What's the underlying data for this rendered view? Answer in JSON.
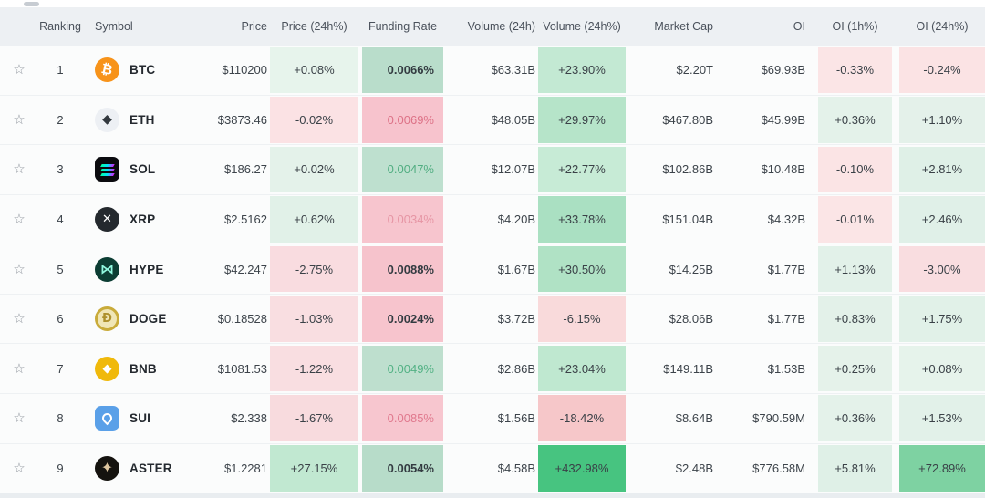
{
  "header": {
    "ranking": "Ranking",
    "symbol": "Symbol",
    "price": "Price",
    "price_24h": "Price (24h%)",
    "funding_rate": "Funding Rate",
    "volume_24h": "Volume (24h)",
    "volume_24h_pct": "Volume (24h%)",
    "market_cap": "Market Cap",
    "oi": "OI",
    "oi_1h": "OI (1h%)",
    "oi_24h": "OI (24h%)"
  },
  "icons": {
    "favorite_star": "☆"
  },
  "colors": {
    "positive_strong": "#47c480",
    "positive_medium": "#7ed2a2",
    "funding_green_bg": "#b9ddcb",
    "funding_red_bg": "#f7c3cd",
    "header_bg": "#edf0f3",
    "row_bg": "#fbfcfc"
  },
  "rows": [
    {
      "rank": "1",
      "symbol": "BTC",
      "icon": {
        "name": "btc-icon",
        "kind": "glyph",
        "shape": "circle",
        "bg": "#f7931a",
        "fg": "#ffffff",
        "glyph": "₿",
        "size": 15,
        "bold": true,
        "rotate": 12
      },
      "price": "$110200",
      "price_24h": {
        "text": "+0.08%",
        "bg": "#e7f4ec"
      },
      "funding": {
        "text": "0.0066%",
        "bg": "#b9ddcb",
        "color": "#333b41",
        "bold": true
      },
      "volume": "$63.31B",
      "volume_24h": {
        "text": "+23.90%",
        "bg": "#c3e9d3"
      },
      "mcap": "$2.20T",
      "oi": "$69.93B",
      "oi_1h": {
        "text": "-0.33%",
        "bg": "#fbe5e6"
      },
      "oi_24h": {
        "text": "-0.24%",
        "bg": "#fbe3e4"
      }
    },
    {
      "rank": "2",
      "symbol": "ETH",
      "icon": {
        "name": "eth-icon",
        "kind": "glyph",
        "shape": "circle",
        "bg": "#edf0f4",
        "fg": "#32383e",
        "glyph": "◆",
        "size": 14,
        "bold": false,
        "rotate": 0
      },
      "price": "$3873.46",
      "price_24h": {
        "text": "-0.02%",
        "bg": "#fbe2e4"
      },
      "funding": {
        "text": "0.0069%",
        "bg": "#f7c3cd",
        "color": "#dd7287",
        "bold": false
      },
      "volume": "$48.05B",
      "volume_24h": {
        "text": "+29.97%",
        "bg": "#b6e4c9"
      },
      "mcap": "$467.80B",
      "oi": "$45.99B",
      "oi_1h": {
        "text": "+0.36%",
        "bg": "#e4f2ea"
      },
      "oi_24h": {
        "text": "+1.10%",
        "bg": "#e4f1ea"
      }
    },
    {
      "rank": "3",
      "symbol": "SOL",
      "icon": {
        "name": "sol-icon",
        "kind": "sol",
        "shape": "rounded",
        "bg": "#0b0b0f"
      },
      "price": "$186.27",
      "price_24h": {
        "text": "+0.02%",
        "bg": "#e4f2ea"
      },
      "funding": {
        "text": "0.0047%",
        "bg": "#bee0cf",
        "color": "#50ad81",
        "bold": false
      },
      "volume": "$12.07B",
      "volume_24h": {
        "text": "+22.77%",
        "bg": "#c7ebd6"
      },
      "mcap": "$102.86B",
      "oi": "$10.48B",
      "oi_1h": {
        "text": "-0.10%",
        "bg": "#fbe4e5"
      },
      "oi_24h": {
        "text": "+2.81%",
        "bg": "#dff0e7"
      }
    },
    {
      "rank": "4",
      "symbol": "XRP",
      "icon": {
        "name": "xrp-icon",
        "kind": "glyph",
        "shape": "circle",
        "bg": "#24292e",
        "fg": "#ffffff",
        "glyph": "✕",
        "size": 13,
        "bold": true,
        "rotate": 0
      },
      "price": "$2.5162",
      "price_24h": {
        "text": "+0.62%",
        "bg": "#e1f1e8"
      },
      "funding": {
        "text": "0.0034%",
        "bg": "#f7c5ce",
        "color": "#e695a4",
        "bold": false
      },
      "volume": "$4.20B",
      "volume_24h": {
        "text": "+33.78%",
        "bg": "#aae0c2"
      },
      "mcap": "$151.04B",
      "oi": "$4.32B",
      "oi_1h": {
        "text": "-0.01%",
        "bg": "#fbe5e6"
      },
      "oi_24h": {
        "text": "+2.46%",
        "bg": "#e0f0e8"
      }
    },
    {
      "rank": "5",
      "symbol": "HYPE",
      "icon": {
        "name": "hype-icon",
        "kind": "glyph",
        "shape": "circle",
        "bg": "#0c3d33",
        "fg": "#90f7de",
        "glyph": "⋈",
        "size": 15,
        "bold": true,
        "rotate": 0
      },
      "price": "$42.247",
      "price_24h": {
        "text": "-2.75%",
        "bg": "#f9dce0"
      },
      "funding": {
        "text": "0.0088%",
        "bg": "#f6c3cc",
        "color": "#333b41",
        "bold": true
      },
      "volume": "$1.67B",
      "volume_24h": {
        "text": "+30.50%",
        "bg": "#b0e2c5"
      },
      "mcap": "$14.25B",
      "oi": "$1.77B",
      "oi_1h": {
        "text": "+1.13%",
        "bg": "#e2f1e9"
      },
      "oi_24h": {
        "text": "-3.00%",
        "bg": "#f9dde0"
      }
    },
    {
      "rank": "6",
      "symbol": "DOGE",
      "icon": {
        "name": "doge-icon",
        "kind": "glyph",
        "shape": "circle",
        "bg": "#f0e6b6",
        "fg": "#ad902c",
        "glyph": "Ð",
        "size": 13,
        "bold": true,
        "rotate": 0,
        "border": "3px solid #c9ab3a"
      },
      "price": "$0.18528",
      "price_24h": {
        "text": "-1.03%",
        "bg": "#f9dee1"
      },
      "funding": {
        "text": "0.0024%",
        "bg": "#f7c4cd",
        "color": "#333b41",
        "bold": true
      },
      "volume": "$3.72B",
      "volume_24h": {
        "text": "-6.15%",
        "bg": "#f9dadb"
      },
      "mcap": "$28.06B",
      "oi": "$1.77B",
      "oi_1h": {
        "text": "+0.83%",
        "bg": "#e3f1e9"
      },
      "oi_24h": {
        "text": "+1.75%",
        "bg": "#e1f1e8"
      }
    },
    {
      "rank": "7",
      "symbol": "BNB",
      "icon": {
        "name": "bnb-icon",
        "kind": "glyph",
        "shape": "circle",
        "bg": "#f0b90b",
        "fg": "#ffffff",
        "glyph": "◆",
        "size": 13,
        "bold": false,
        "rotate": 0
      },
      "price": "$1081.53",
      "price_24h": {
        "text": "-1.22%",
        "bg": "#f9dee1"
      },
      "funding": {
        "text": "0.0049%",
        "bg": "#bedfce",
        "color": "#52b184",
        "bold": false
      },
      "volume": "$2.86B",
      "volume_24h": {
        "text": "+23.04%",
        "bg": "#bfe8d0"
      },
      "mcap": "$149.11B",
      "oi": "$1.53B",
      "oi_1h": {
        "text": "+0.25%",
        "bg": "#e5f2ea"
      },
      "oi_24h": {
        "text": "+0.08%",
        "bg": "#e6f3eb"
      }
    },
    {
      "rank": "8",
      "symbol": "SUI",
      "icon": {
        "name": "sui-icon",
        "kind": "drop",
        "shape": "rounded",
        "bg": "#5aa0e8"
      },
      "price": "$2.338",
      "price_24h": {
        "text": "-1.67%",
        "bg": "#f8dbde"
      },
      "funding": {
        "text": "0.0085%",
        "bg": "#f7c6cf",
        "color": "#e0798e",
        "bold": false
      },
      "volume": "$1.56B",
      "volume_24h": {
        "text": "-18.42%",
        "bg": "#f6c7c9"
      },
      "mcap": "$8.64B",
      "oi": "$790.59M",
      "oi_1h": {
        "text": "+0.36%",
        "bg": "#e4f2ea"
      },
      "oi_24h": {
        "text": "+1.53%",
        "bg": "#e2f1e9"
      }
    },
    {
      "rank": "9",
      "symbol": "ASTER",
      "icon": {
        "name": "aster-icon",
        "kind": "glyph",
        "shape": "circle",
        "bg": "#15130f",
        "fg": "#ddc59e",
        "glyph": "✦",
        "size": 16,
        "bold": false,
        "rotate": 0
      },
      "price": "$1.2281",
      "price_24h": {
        "text": "+27.15%",
        "bg": "#c1e8d1"
      },
      "funding": {
        "text": "0.0054%",
        "bg": "#b7dcc9",
        "color": "#333b41",
        "bold": true
      },
      "volume": "$4.58B",
      "volume_24h": {
        "text": "+432.98%",
        "bg": "#47c480"
      },
      "mcap": "$2.48B",
      "oi": "$776.58M",
      "oi_1h": {
        "text": "+5.81%",
        "bg": "#dff0e7"
      },
      "oi_24h": {
        "text": "+72.89%",
        "bg": "#7ed2a2"
      }
    }
  ]
}
